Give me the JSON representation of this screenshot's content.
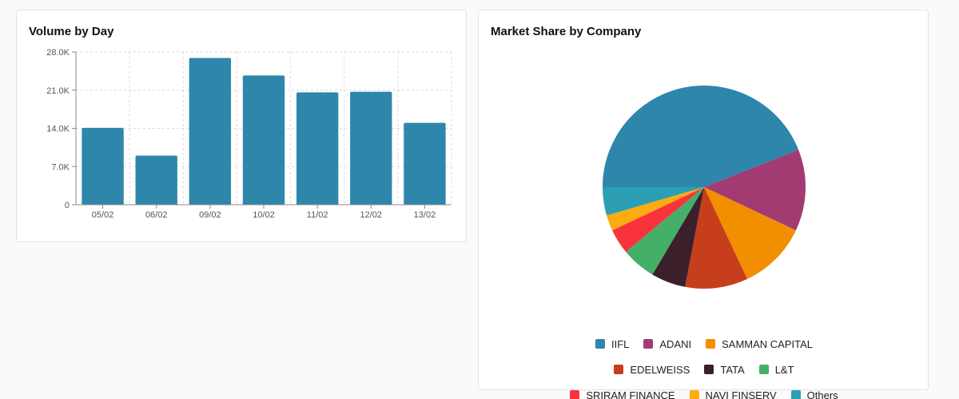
{
  "volume_card": {
    "title": "Volume by Day"
  },
  "share_card": {
    "title": "Market Share by Company"
  },
  "colors": {
    "bar": "#2e86ab",
    "grid": "#d9d9d9",
    "axis": "#888888"
  },
  "chart_data": [
    {
      "type": "bar",
      "title": "Volume by Day",
      "categories": [
        "05/02",
        "06/02",
        "09/02",
        "10/02",
        "11/02",
        "12/02",
        "13/02"
      ],
      "values": [
        14100,
        9000,
        26900,
        23700,
        20600,
        20700,
        15000
      ],
      "ylim": [
        0,
        28000
      ],
      "yticks": [
        0,
        7000,
        14000,
        21000,
        28000
      ],
      "ytick_labels": [
        "0",
        "7.0K",
        "14.0K",
        "21.0K",
        "28.0K"
      ],
      "grid": true,
      "xlabel": "",
      "ylabel": ""
    },
    {
      "type": "pie",
      "title": "Market Share by Company",
      "legend_position": "bottom",
      "slices": [
        {
          "label": "IIFL",
          "value": 44.0,
          "color": "#2e86ab"
        },
        {
          "label": "ADANI",
          "value": 13.0,
          "color": "#a23b72"
        },
        {
          "label": "SAMMAN CAPITAL",
          "value": 11.0,
          "color": "#f18f01"
        },
        {
          "label": "EDELWEISS",
          "value": 10.0,
          "color": "#c73e1d"
        },
        {
          "label": "TATA",
          "value": 5.5,
          "color": "#3b1f2b"
        },
        {
          "label": "L&T",
          "value": 5.5,
          "color": "#44af69"
        },
        {
          "label": "SRIRAM FINANCE",
          "value": 4.0,
          "color": "#f8333c"
        },
        {
          "label": "NAVI FINSERV",
          "value": 2.5,
          "color": "#fcab10"
        },
        {
          "label": "Others",
          "value": 4.5,
          "color": "#2b9eb3"
        }
      ]
    }
  ]
}
